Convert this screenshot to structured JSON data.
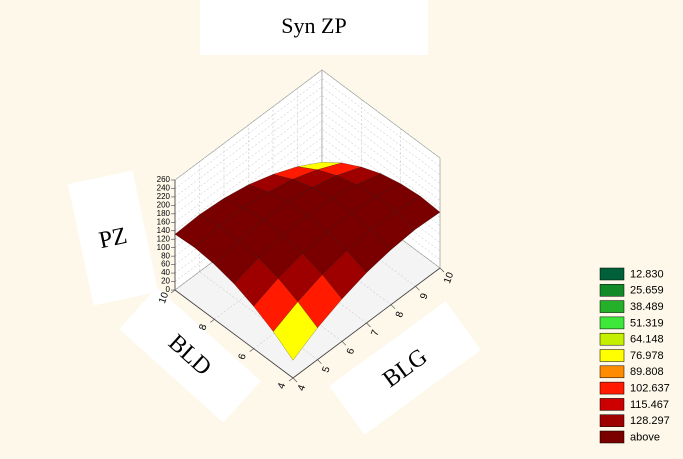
{
  "chart_data": {
    "type": "surface",
    "title": "Syn ZP",
    "x_label": "BLG",
    "y_label": "BLD",
    "z_label": "PZ",
    "x": [
      4,
      5,
      6,
      7,
      8,
      9,
      10
    ],
    "y": [
      4,
      5,
      6,
      7,
      8,
      9,
      10
    ],
    "z": [
      [
        42,
        75,
        100,
        119,
        130,
        135,
        132
      ],
      [
        75,
        102,
        123,
        136,
        143,
        142,
        135
      ],
      [
        100,
        123,
        138,
        147,
        148,
        143,
        130
      ],
      [
        119,
        136,
        147,
        150,
        147,
        136,
        119
      ],
      [
        130,
        143,
        148,
        147,
        138,
        123,
        100
      ],
      [
        135,
        142,
        143,
        136,
        123,
        102,
        75
      ],
      [
        132,
        135,
        130,
        119,
        100,
        75,
        42
      ]
    ],
    "xlim": [
      4,
      10
    ],
    "ylim": [
      4,
      10
    ],
    "zlim": [
      0,
      260
    ],
    "xticks": [
      4,
      5,
      6,
      7,
      8,
      9,
      10
    ],
    "yticks": [
      4,
      6,
      8,
      10
    ],
    "zticks": [
      0,
      20,
      40,
      60,
      80,
      100,
      120,
      140,
      160,
      180,
      200,
      220,
      240,
      260
    ],
    "grid": true,
    "levels": [
      {
        "value": 12.83,
        "label": "12.830"
      },
      25.659,
      38.489,
      51.319,
      64.148,
      76.978,
      89.808,
      102.637,
      115.467,
      128.297
    ],
    "level_colors": [
      "#00603a",
      "#138a28",
      "#25b02a",
      "#3ee83a",
      "#c4f000",
      "#ffff00",
      "#ff8c00",
      "#ff1a00",
      "#cc0000",
      "#9e0000"
    ],
    "above_label": "above",
    "above_color": "#7a0000",
    "legend": "right"
  }
}
